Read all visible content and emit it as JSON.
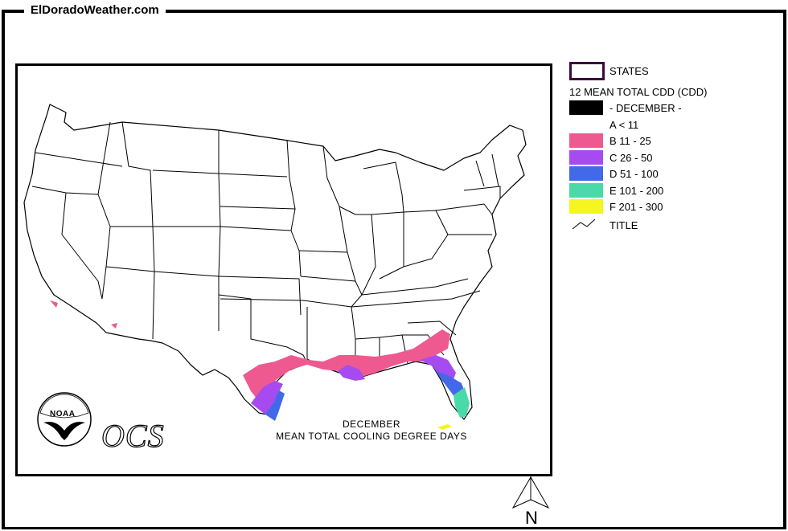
{
  "header": {
    "site_title": "ElDoradoWeather.com"
  },
  "legend": {
    "states_label": "STATES",
    "measure_title": "12 MEAN TOTAL CDD (CDD)",
    "title_row_label": "- DECEMBER -",
    "categories": [
      {
        "label": "A < 11",
        "color": "#ffffff"
      },
      {
        "label": "B 11 - 25",
        "color": "#ee5a90"
      },
      {
        "label": "C 26 - 50",
        "color": "#a64bf0"
      },
      {
        "label": "D 51 - 100",
        "color": "#4169e8"
      },
      {
        "label": "E 101 - 200",
        "color": "#4ad9a8"
      },
      {
        "label": "F 201 - 300",
        "color": "#f5f520"
      }
    ],
    "title_line_label": "TITLE"
  },
  "map": {
    "caption_line1": "DECEMBER",
    "caption_line2": "MEAN TOTAL COOLING DEGREE DAYS",
    "logo_text": "NOAA",
    "ocs_text": "OCS",
    "north_label": "N",
    "colors": {
      "B": "#ee5a90",
      "C": "#a64bf0",
      "D": "#4169e8",
      "E": "#4ad9a8",
      "F": "#f5f520"
    }
  }
}
